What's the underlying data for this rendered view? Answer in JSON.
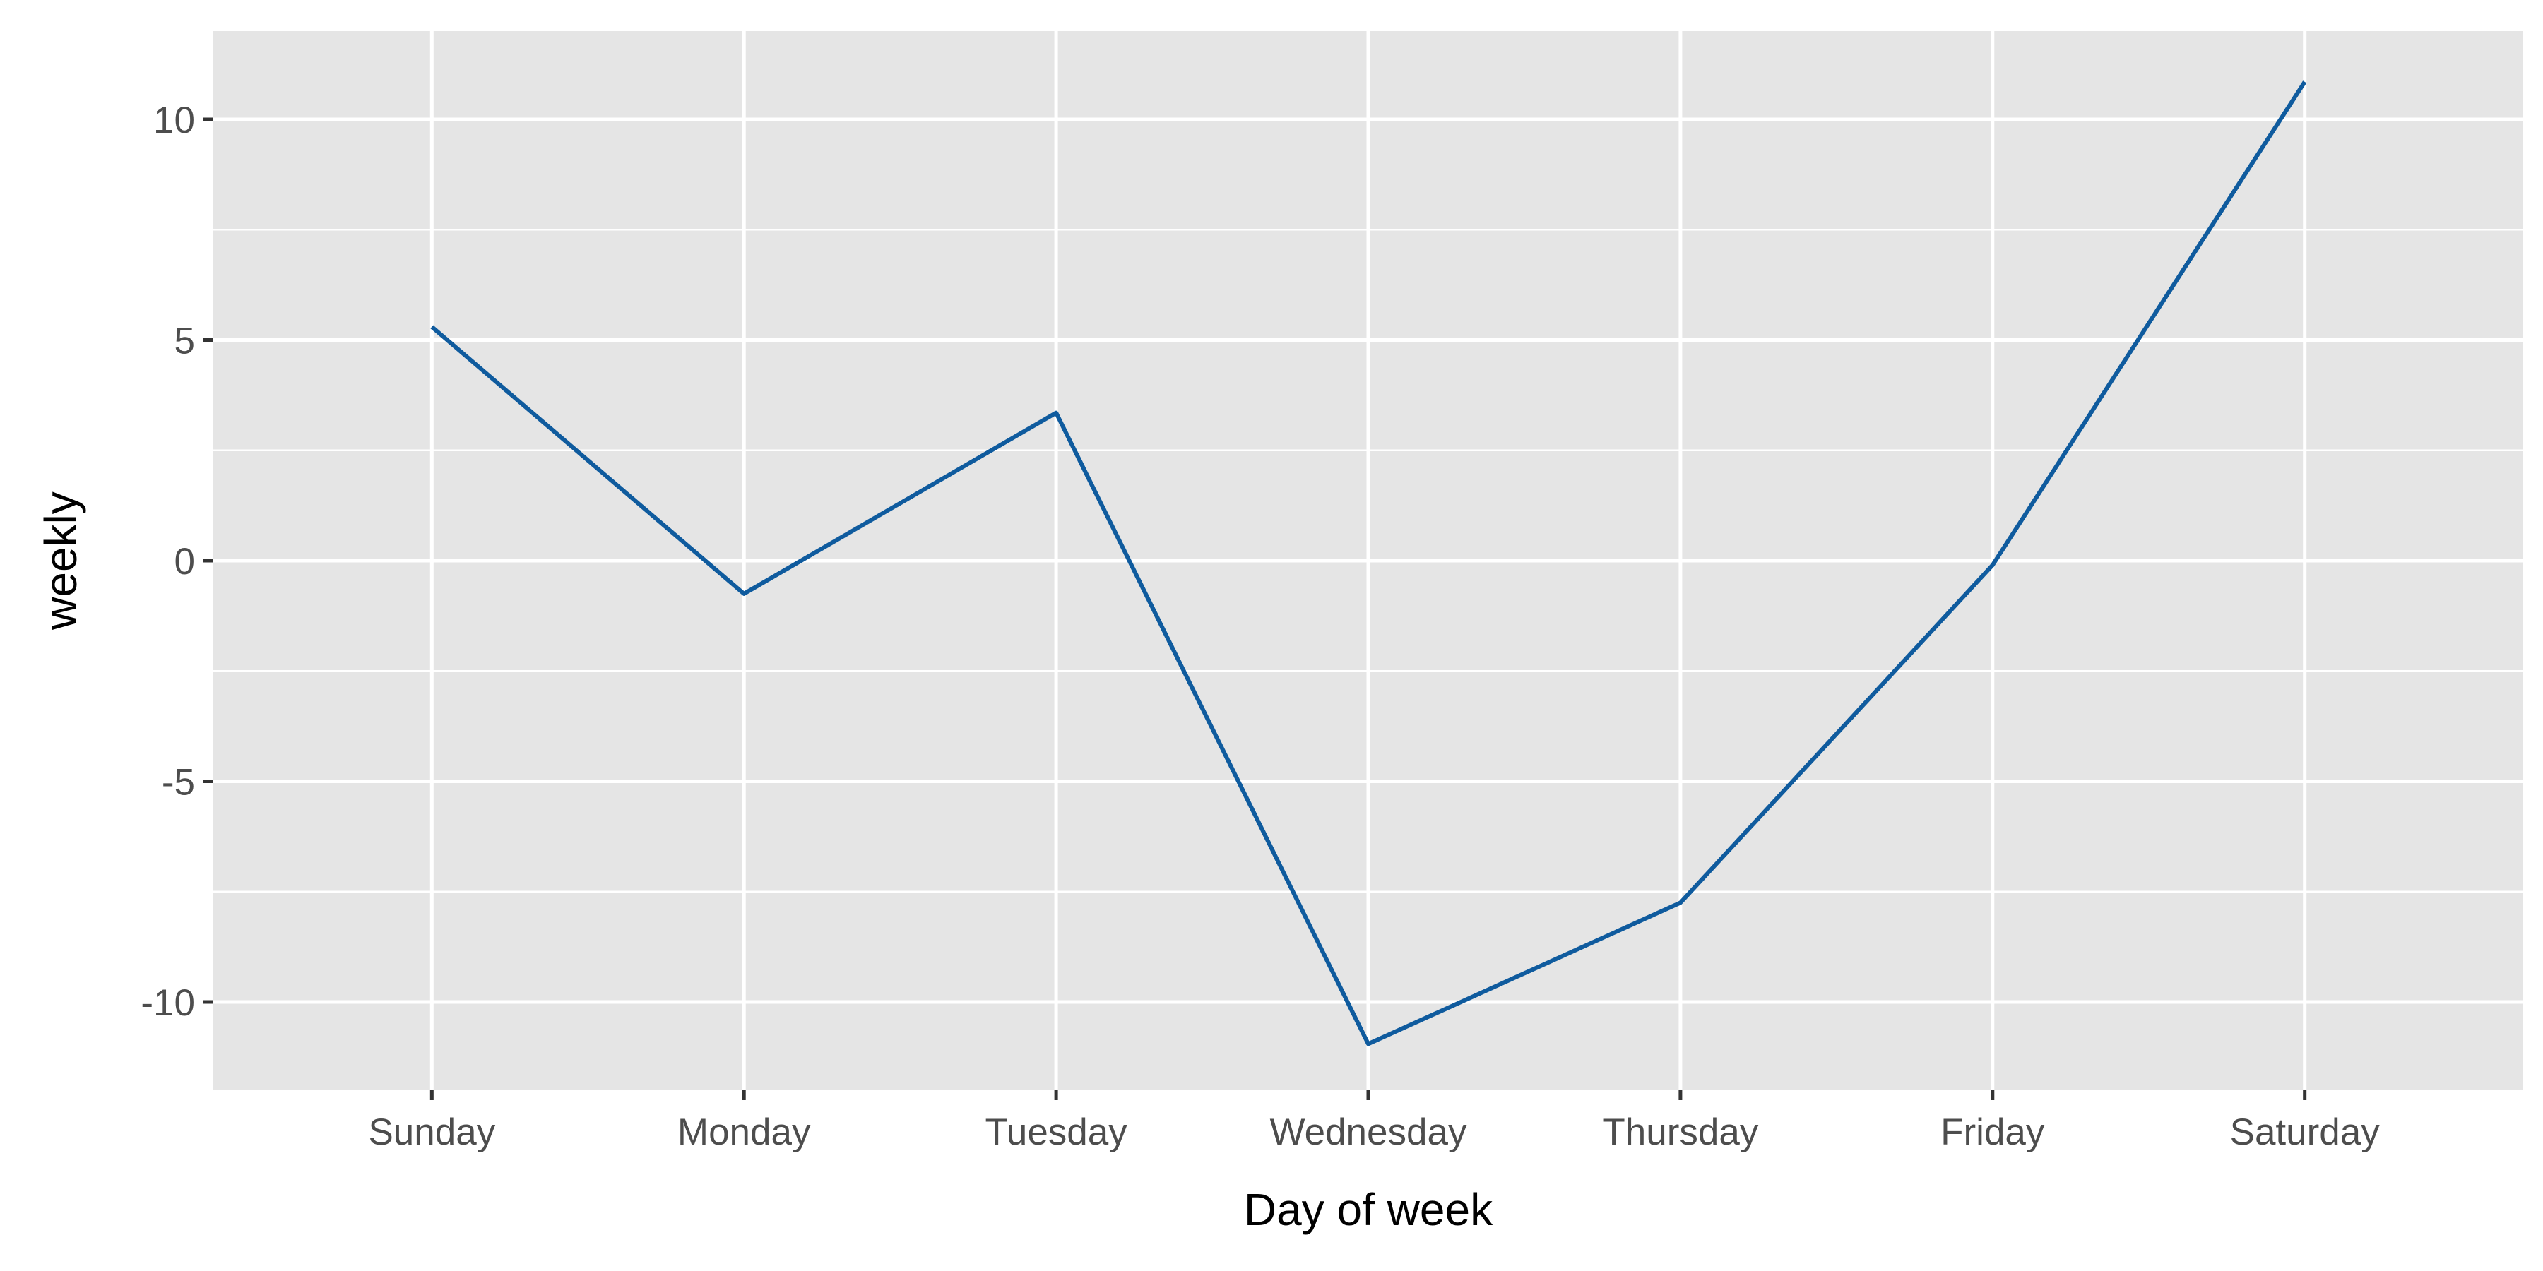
{
  "chart_data": {
    "type": "line",
    "title": "",
    "xlabel": "Day of week",
    "ylabel": "weekly",
    "categories": [
      "Sunday",
      "Monday",
      "Tuesday",
      "Wednesday",
      "Thursday",
      "Friday",
      "Saturday"
    ],
    "series": [
      {
        "values": [
          5.3,
          -0.75,
          3.35,
          -10.95,
          -7.75,
          -0.1,
          10.85
        ]
      }
    ],
    "ylim": [
      -12.0,
      12.0
    ],
    "yticks": [
      -10,
      -5,
      0,
      5,
      10
    ],
    "ytick_labels": [
      "-10",
      "-5",
      "0",
      "5",
      "10"
    ],
    "grid": true,
    "legend": "none",
    "colors": {
      "panel": "#e5e5e5",
      "grid": "#ffffff",
      "line": "#0f5b9e",
      "tick": "#333333"
    }
  }
}
